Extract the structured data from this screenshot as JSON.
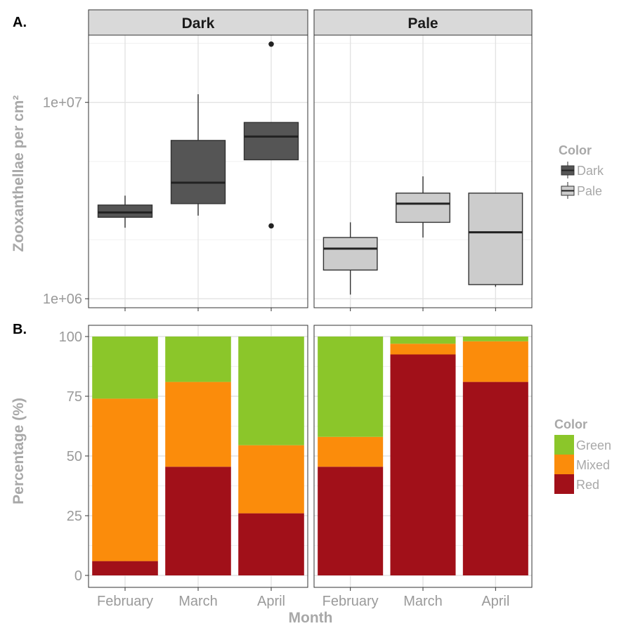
{
  "chart_data": [
    {
      "type": "boxplot",
      "panel_tag": "A.",
      "ylabel": "Zooxanthellae per cm²",
      "yscale": "log10",
      "ylim": [
        900000,
        22000000
      ],
      "yticks": [
        {
          "label": "1e+06",
          "value": 1000000
        },
        {
          "label": "1e+07",
          "value": 10000000
        }
      ],
      "categories": [
        "February",
        "March",
        "April"
      ],
      "facets": [
        {
          "strip": "Dark",
          "fill": "#555555",
          "boxes": [
            {
              "x": "February",
              "low": 2300000,
              "q1": 2600000,
              "median": 2750000,
              "q3": 3000000,
              "high": 3350000,
              "outliers": []
            },
            {
              "x": "March",
              "low": 2650000,
              "q1": 3050000,
              "median": 3900000,
              "q3": 6400000,
              "high": 11000000,
              "outliers": []
            },
            {
              "x": "April",
              "low": 5100000,
              "q1": 5100000,
              "median": 6700000,
              "q3": 7900000,
              "high": 7900000,
              "outliers": [
                19800000,
                2350000
              ]
            }
          ]
        },
        {
          "strip": "Pale",
          "fill": "#cccccc",
          "boxes": [
            {
              "x": "February",
              "low": 1050000,
              "q1": 1400000,
              "median": 1800000,
              "q3": 2050000,
              "high": 2450000,
              "outliers": []
            },
            {
              "x": "March",
              "low": 2050000,
              "q1": 2450000,
              "median": 3050000,
              "q3": 3450000,
              "high": 4200000,
              "outliers": []
            },
            {
              "x": "April",
              "low": 1150000,
              "q1": 1180000,
              "median": 2180000,
              "q3": 3450000,
              "high": 3450000,
              "outliers": []
            }
          ]
        }
      ],
      "legend": {
        "title": "Color",
        "position": "right",
        "items": [
          {
            "label": "Dark",
            "color": "#555555"
          },
          {
            "label": "Pale",
            "color": "#cccccc"
          }
        ]
      },
      "grid": true
    },
    {
      "type": "bar",
      "stacked": true,
      "panel_tag": "B.",
      "xlabel": "Month",
      "ylabel": "Percentage (%)",
      "ylim": [
        0,
        100
      ],
      "yticks": [
        0,
        25,
        50,
        75,
        100
      ],
      "categories": [
        "February",
        "March",
        "April"
      ],
      "facets": [
        {
          "series": [
            {
              "name": "Red",
              "color": "#a11019",
              "values": [
                6,
                45.5,
                26
              ]
            },
            {
              "name": "Mixed",
              "color": "#fb8c0b",
              "values": [
                68,
                35.5,
                28.5
              ]
            },
            {
              "name": "Green",
              "color": "#8bc62a",
              "values": [
                26,
                19,
                45.5
              ]
            }
          ]
        },
        {
          "series": [
            {
              "name": "Red",
              "color": "#a11019",
              "values": [
                45.5,
                92.5,
                81
              ]
            },
            {
              "name": "Mixed",
              "color": "#fb8c0b",
              "values": [
                12.5,
                4.5,
                17
              ]
            },
            {
              "name": "Green",
              "color": "#8bc62a",
              "values": [
                42,
                3,
                2
              ]
            }
          ]
        }
      ],
      "legend": {
        "title": "Color",
        "position": "right",
        "items": [
          {
            "label": "Green",
            "color": "#8bc62a"
          },
          {
            "label": "Mixed",
            "color": "#fb8c0b"
          },
          {
            "label": "Red",
            "color": "#a11019"
          }
        ]
      },
      "grid": true
    }
  ]
}
